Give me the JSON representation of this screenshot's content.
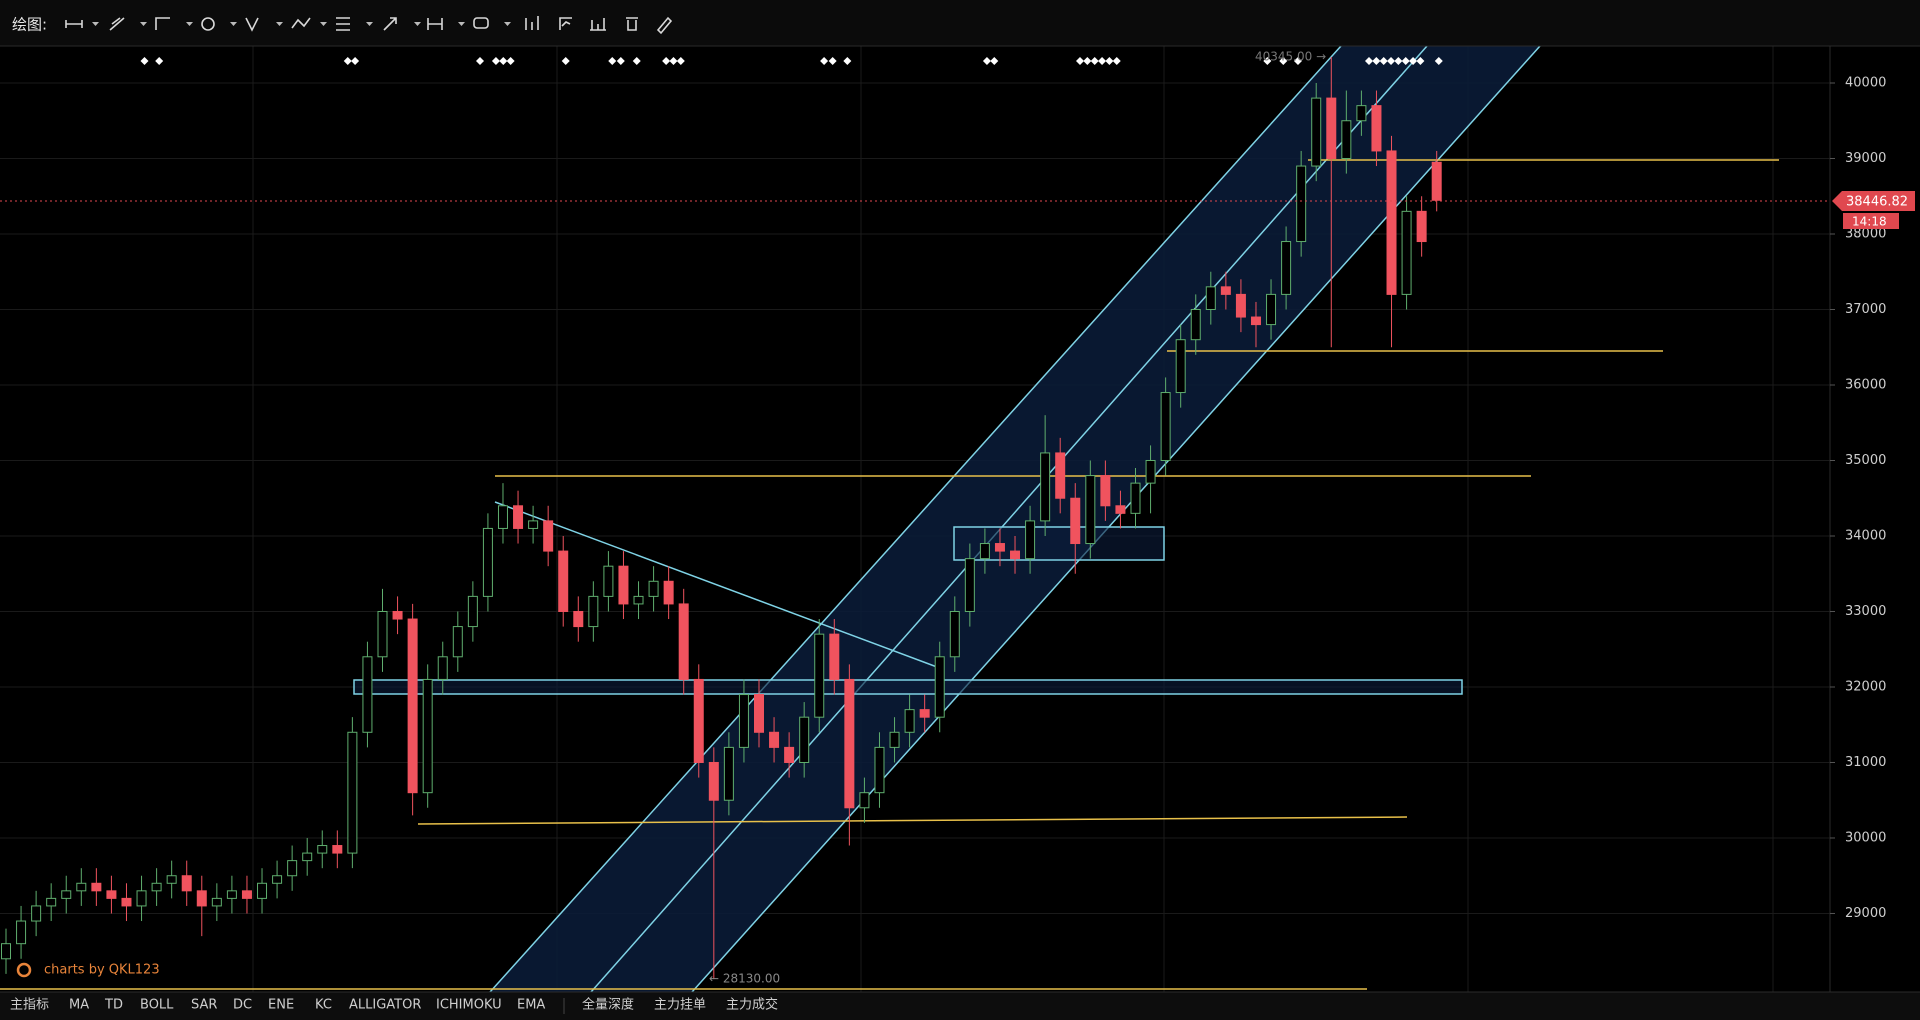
{
  "toolbar": {
    "label": "绘图:"
  },
  "indicators": [
    "主指标",
    "MA",
    "TD",
    "BOLL",
    "SAR",
    "DC",
    "ENE",
    "KC",
    "ALLIGATOR",
    "ICHIMOKU",
    "EMA",
    "全量深度",
    "主力挂单",
    "主力成交"
  ],
  "watermark": "charts by QKL123",
  "chart_data": {
    "type": "candlestick",
    "up_color": "#5fae6e",
    "down_color": "#f0535e",
    "ylim": [
      27960,
      40490
    ],
    "yticks": [
      29000,
      30000,
      31000,
      32000,
      33000,
      34000,
      35000,
      36000,
      37000,
      38000,
      39000,
      40000
    ],
    "grid": true,
    "last_price_label": "38446.82",
    "countdown": "14:18",
    "high_label": "40345.00 →",
    "low_label": "← 28130.00",
    "open": [
      28400,
      28600,
      28900,
      29100,
      29200,
      29300,
      29400,
      29300,
      29200,
      29100,
      29300,
      29400,
      29500,
      29300,
      29100,
      29200,
      29300,
      29200,
      29400,
      29500,
      29700,
      29800,
      29900,
      29800,
      31400,
      32400,
      33000,
      32900,
      30600,
      32100,
      32400,
      32800,
      33200,
      34100,
      34400,
      34100,
      34200,
      33800,
      33000,
      32800,
      33200,
      33600,
      33100,
      33200,
      33400,
      33100,
      32100,
      31000,
      30500,
      31200,
      31900,
      31400,
      31200,
      31000,
      31600,
      32700,
      32100,
      30400,
      30600,
      31200,
      31400,
      31700,
      31600,
      32400,
      33000,
      33700,
      33900,
      33800,
      33700,
      34200,
      35100,
      34500,
      33900,
      34800,
      34400,
      34300,
      34700,
      35000,
      35900,
      36600,
      37000,
      37300,
      37200,
      36900,
      36800,
      37200,
      37900,
      38900,
      39800,
      39000,
      39500,
      39700,
      39100,
      37200,
      38300,
      38950
    ],
    "high": [
      28800,
      29100,
      29300,
      29400,
      29500,
      29600,
      29600,
      29500,
      29400,
      29500,
      29600,
      29700,
      29700,
      29500,
      29400,
      29500,
      29500,
      29600,
      29700,
      29900,
      30000,
      30100,
      30100,
      31600,
      32600,
      33300,
      33200,
      33100,
      32300,
      32600,
      33000,
      33400,
      34300,
      34700,
      34600,
      34400,
      34400,
      34000,
      33200,
      33400,
      33800,
      33800,
      33400,
      33600,
      33600,
      33300,
      32300,
      31200,
      31400,
      32100,
      32100,
      31600,
      31400,
      31800,
      32900,
      32900,
      32300,
      30800,
      31400,
      31600,
      31900,
      31900,
      32600,
      33200,
      33900,
      34100,
      34100,
      34000,
      34400,
      35600,
      35300,
      34700,
      35000,
      35000,
      34600,
      34900,
      35200,
      36100,
      36800,
      37200,
      37500,
      37500,
      37400,
      37100,
      37400,
      38100,
      39100,
      40000,
      40345,
      39900,
      39900,
      39900,
      39300,
      38500,
      38500,
      39100
    ],
    "low": [
      28200,
      28400,
      28700,
      28900,
      29000,
      29100,
      29100,
      29000,
      28900,
      28900,
      29100,
      29200,
      29100,
      28700,
      28900,
      29000,
      29000,
      29000,
      29200,
      29300,
      29500,
      29600,
      29600,
      29600,
      31200,
      32200,
      32700,
      30300,
      30400,
      31900,
      32200,
      32600,
      33000,
      33900,
      33900,
      33900,
      33600,
      32800,
      32600,
      32600,
      33000,
      32900,
      32900,
      33000,
      32900,
      31900,
      30800,
      28130,
      30300,
      31000,
      31200,
      31000,
      30800,
      30800,
      31400,
      31900,
      29900,
      30200,
      30400,
      31000,
      31200,
      31400,
      31400,
      32200,
      32800,
      33500,
      33600,
      33500,
      33500,
      34000,
      34300,
      33500,
      33700,
      34200,
      34100,
      34100,
      34300,
      34800,
      35700,
      36400,
      36800,
      37000,
      36700,
      36500,
      36600,
      37000,
      37700,
      38700,
      36500,
      38800,
      39300,
      38900,
      36500,
      37000,
      37700,
      38300
    ],
    "close": [
      28600,
      28900,
      29100,
      29200,
      29300,
      29400,
      29300,
      29200,
      29100,
      29300,
      29400,
      29500,
      29300,
      29100,
      29200,
      29300,
      29200,
      29400,
      29500,
      29700,
      29800,
      29900,
      29800,
      31400,
      32400,
      33000,
      32900,
      30600,
      32100,
      32400,
      32800,
      33200,
      34100,
      34400,
      34100,
      34200,
      33800,
      33000,
      32800,
      33200,
      33600,
      33100,
      33200,
      33400,
      33100,
      32100,
      31000,
      30500,
      31200,
      31900,
      31400,
      31200,
      31000,
      31600,
      32700,
      32100,
      30400,
      30600,
      31200,
      31400,
      31700,
      31600,
      32400,
      33000,
      33700,
      33900,
      33800,
      33700,
      34200,
      35100,
      34500,
      33900,
      34800,
      34400,
      34300,
      34700,
      35000,
      35900,
      36600,
      37000,
      37300,
      37200,
      36900,
      36800,
      37200,
      37900,
      38900,
      39800,
      39000,
      39500,
      39700,
      39100,
      37200,
      38300,
      37900,
      38446.82
    ]
  }
}
